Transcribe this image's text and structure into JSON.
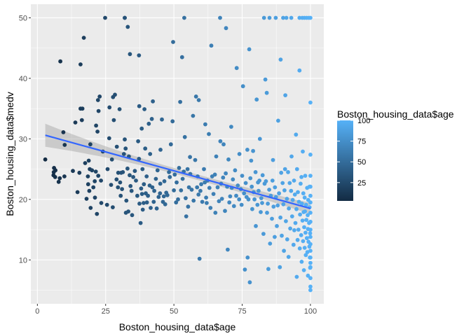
{
  "chart_data": {
    "type": "scatter",
    "title": "",
    "xlabel": "Boston_housing_data$age",
    "ylabel": "Boston_housing_data$medv",
    "xlim": [
      -2.4,
      104.9
    ],
    "ylim": [
      2.75,
      52.25
    ],
    "x_ticks": [
      0,
      25,
      50,
      75,
      100
    ],
    "x_tick_labels": [
      "0",
      "25",
      "50",
      "75",
      "100"
    ],
    "y_ticks": [
      10,
      20,
      30,
      40,
      50
    ],
    "y_tick_labels": [
      "10",
      "20",
      "30",
      "40",
      "50"
    ],
    "grid": true,
    "legend": {
      "title": "Boston_housing_data$age",
      "placement": "right",
      "ticks": [
        25,
        50,
        75,
        100
      ],
      "tick_labels": [
        "25",
        "50",
        "75",
        "100"
      ],
      "range": [
        2.9,
        100
      ],
      "low_color": "#132B43",
      "high_color": "#56B1F7"
    },
    "colors": {
      "panel": "#EBEBEB",
      "grid": "#FFFFFF",
      "line": "#3366FF",
      "band": "#999999"
    },
    "fit_line": {
      "x": [
        2.9,
        100
      ],
      "y": [
        30.6,
        18.5
      ],
      "band_half_width_ends": [
        1.9,
        0.9
      ],
      "band_half_width_mid": 0.45
    },
    "points": [
      [
        2.9,
        26.6
      ],
      [
        5.9,
        24.0
      ],
      [
        6.0,
        24.5
      ],
      [
        6.1,
        25.2
      ],
      [
        6.5,
        23.7
      ],
      [
        6.6,
        24.8
      ],
      [
        7.8,
        22.9
      ],
      [
        8.2,
        23.5
      ],
      [
        8.4,
        42.8
      ],
      [
        9.5,
        31.1
      ],
      [
        9.9,
        23.8
      ],
      [
        10.0,
        29.0
      ],
      [
        13.0,
        24.7
      ],
      [
        13.9,
        32.7
      ],
      [
        14.7,
        21.2
      ],
      [
        15.4,
        24.4
      ],
      [
        15.8,
        35.0
      ],
      [
        15.8,
        42.3
      ],
      [
        16.3,
        33.1
      ],
      [
        16.5,
        35.0
      ],
      [
        17.0,
        46.7
      ],
      [
        17.5,
        26.0
      ],
      [
        18.0,
        20.1
      ],
      [
        18.5,
        23.8
      ],
      [
        18.6,
        22.5
      ],
      [
        18.8,
        26.4
      ],
      [
        19.0,
        21.4
      ],
      [
        19.2,
        25.0
      ],
      [
        19.4,
        29.1
      ],
      [
        19.5,
        18.6
      ],
      [
        20.0,
        24.8
      ],
      [
        20.5,
        22.0
      ],
      [
        21.0,
        23.0
      ],
      [
        21.1,
        20.3
      ],
      [
        21.4,
        24.6
      ],
      [
        21.5,
        32.2
      ],
      [
        21.8,
        17.6
      ],
      [
        22.0,
        31.2
      ],
      [
        22.2,
        36.4
      ],
      [
        22.3,
        23.9
      ],
      [
        22.4,
        34.6
      ],
      [
        22.8,
        37.0
      ],
      [
        23.3,
        23.1
      ],
      [
        23.4,
        19.4
      ],
      [
        24.0,
        27.9
      ],
      [
        24.8,
        50.0
      ],
      [
        25.5,
        19.1
      ],
      [
        25.7,
        25.0
      ],
      [
        26.3,
        30.1
      ],
      [
        26.4,
        35.2
      ],
      [
        27.0,
        22.4
      ],
      [
        27.3,
        26.6
      ],
      [
        27.6,
        18.7
      ],
      [
        27.7,
        36.9
      ],
      [
        28.0,
        33.1
      ],
      [
        28.4,
        37.3
      ],
      [
        29.0,
        23.3
      ],
      [
        29.1,
        28.7
      ],
      [
        29.5,
        22.0
      ],
      [
        29.6,
        24.4
      ],
      [
        30.1,
        34.9
      ],
      [
        30.3,
        22.8
      ],
      [
        30.5,
        20.6
      ],
      [
        30.7,
        24.4
      ],
      [
        31.0,
        21.7
      ],
      [
        31.3,
        24.5
      ],
      [
        31.7,
        27.5
      ],
      [
        32.0,
        50.0
      ],
      [
        32.0,
        50.0
      ],
      [
        32.0,
        29.9
      ],
      [
        32.3,
        28.4
      ],
      [
        32.4,
        17.8
      ],
      [
        32.6,
        19.8
      ],
      [
        33.0,
        25.1
      ],
      [
        33.1,
        48.5
      ],
      [
        33.3,
        18.0
      ],
      [
        33.5,
        27.1
      ],
      [
        33.8,
        24.0
      ],
      [
        33.9,
        44.0
      ],
      [
        34.1,
        22.2
      ],
      [
        34.5,
        21.4
      ],
      [
        34.7,
        17.4
      ],
      [
        35.1,
        23.7
      ],
      [
        35.7,
        24.7
      ],
      [
        36.1,
        23.1
      ],
      [
        36.6,
        20.6
      ],
      [
        36.9,
        29.6
      ],
      [
        37.2,
        26.7
      ],
      [
        37.2,
        43.8
      ],
      [
        37.3,
        35.4
      ],
      [
        37.4,
        19.3
      ],
      [
        37.8,
        16.1
      ],
      [
        38.0,
        21.8
      ],
      [
        38.2,
        31.7
      ],
      [
        38.3,
        20.9
      ],
      [
        38.5,
        25.0
      ],
      [
        38.6,
        18.3
      ],
      [
        38.9,
        19.4
      ],
      [
        39.0,
        22.5
      ],
      [
        39.2,
        34.9
      ],
      [
        39.5,
        28.4
      ],
      [
        39.7,
        21.0
      ],
      [
        40.0,
        23.8
      ],
      [
        40.1,
        19.5
      ],
      [
        40.5,
        20.6
      ],
      [
        40.8,
        32.5
      ],
      [
        41.1,
        22.3
      ],
      [
        41.3,
        27.5
      ],
      [
        41.5,
        18.6
      ],
      [
        41.9,
        33.3
      ],
      [
        42.1,
        22.0
      ],
      [
        42.3,
        36.2
      ],
      [
        42.6,
        19.6
      ],
      [
        42.8,
        21.4
      ],
      [
        43.4,
        23.4
      ],
      [
        43.7,
        18.5
      ],
      [
        44.0,
        24.8
      ],
      [
        44.4,
        20.4
      ],
      [
        44.9,
        21.0
      ],
      [
        45.0,
        22.6
      ],
      [
        45.1,
        28.2
      ],
      [
        45.6,
        33.2
      ],
      [
        46.0,
        19.6
      ],
      [
        46.3,
        20.5
      ],
      [
        46.5,
        23.0
      ],
      [
        46.8,
        19.2
      ],
      [
        47.2,
        21.1
      ],
      [
        47.6,
        20.7
      ],
      [
        48.2,
        24.5
      ],
      [
        48.5,
        23.7
      ],
      [
        48.9,
        29.1
      ],
      [
        49.5,
        32.9
      ],
      [
        49.7,
        46.0
      ],
      [
        50.0,
        21.5
      ],
      [
        50.3,
        24.1
      ],
      [
        50.8,
        19.5
      ],
      [
        51.0,
        22.8
      ],
      [
        51.5,
        20.0
      ],
      [
        51.9,
        25.2
      ],
      [
        52.3,
        36.1
      ],
      [
        52.6,
        21.5
      ],
      [
        53.0,
        43.5
      ],
      [
        53.2,
        23.4
      ],
      [
        53.6,
        24.6
      ],
      [
        53.8,
        50.0
      ],
      [
        54.0,
        30.3
      ],
      [
        54.3,
        20.2
      ],
      [
        54.5,
        17.2
      ],
      [
        55.0,
        25.0
      ],
      [
        55.2,
        18.8
      ],
      [
        55.5,
        22.0
      ],
      [
        55.9,
        27.0
      ],
      [
        56.0,
        24.2
      ],
      [
        56.5,
        21.6
      ],
      [
        57.0,
        33.8
      ],
      [
        57.2,
        19.8
      ],
      [
        57.8,
        26.5
      ],
      [
        58.1,
        37.0
      ],
      [
        58.5,
        22.0
      ],
      [
        58.7,
        23.8
      ],
      [
        59.0,
        20.8
      ],
      [
        59.1,
        36.4
      ],
      [
        59.4,
        10.2
      ],
      [
        59.7,
        21.4
      ],
      [
        60.0,
        22.5
      ],
      [
        60.4,
        19.6
      ],
      [
        61.0,
        25.0
      ],
      [
        61.3,
        22.8
      ],
      [
        61.5,
        32.4
      ],
      [
        61.8,
        20.3
      ],
      [
        62.0,
        19.4
      ],
      [
        62.3,
        23.1
      ],
      [
        62.8,
        30.8
      ],
      [
        63.0,
        21.9
      ],
      [
        63.4,
        18.6
      ],
      [
        63.7,
        45.4
      ],
      [
        64.0,
        23.8
      ],
      [
        64.5,
        20.9
      ],
      [
        65.0,
        24.1
      ],
      [
        65.2,
        17.8
      ],
      [
        65.5,
        27.1
      ],
      [
        66.0,
        22.0
      ],
      [
        66.5,
        19.7
      ],
      [
        66.9,
        50.0
      ],
      [
        67.0,
        29.6
      ],
      [
        67.3,
        22.6
      ],
      [
        67.6,
        20.1
      ],
      [
        68.0,
        23.6
      ],
      [
        68.2,
        29.1
      ],
      [
        68.7,
        18.1
      ],
      [
        69.0,
        24.3
      ],
      [
        69.1,
        48.3
      ],
      [
        69.5,
        22.1
      ],
      [
        69.7,
        11.7
      ],
      [
        70.0,
        26.6
      ],
      [
        70.3,
        19.5
      ],
      [
        70.6,
        20.5
      ],
      [
        71.0,
        32.0
      ],
      [
        71.2,
        21.9
      ],
      [
        71.6,
        23.3
      ],
      [
        72.0,
        18.9
      ],
      [
        72.4,
        24.8
      ],
      [
        72.8,
        20.6
      ],
      [
        73.0,
        41.7
      ],
      [
        73.4,
        22.3
      ],
      [
        73.9,
        20.0
      ],
      [
        74.0,
        27.5
      ],
      [
        74.5,
        21.7
      ],
      [
        74.8,
        19.1
      ],
      [
        75.0,
        23.9
      ],
      [
        75.3,
        38.7
      ],
      [
        75.7,
        21.0
      ],
      [
        76.0,
        8.4
      ],
      [
        76.3,
        22.7
      ],
      [
        76.6,
        20.4
      ],
      [
        76.9,
        28.2
      ],
      [
        77.0,
        10.4
      ],
      [
        77.3,
        20.0
      ],
      [
        77.6,
        44.8
      ],
      [
        77.8,
        6.3
      ],
      [
        78.0,
        23.5
      ],
      [
        78.3,
        26.4
      ],
      [
        78.5,
        22.1
      ],
      [
        78.7,
        18.4
      ],
      [
        79.0,
        28.0
      ],
      [
        79.2,
        21.2
      ],
      [
        79.5,
        20.0
      ],
      [
        79.9,
        24.5
      ],
      [
        80.0,
        15.6
      ],
      [
        80.3,
        36.5
      ],
      [
        80.6,
        19.1
      ],
      [
        80.8,
        22.8
      ],
      [
        81.0,
        21.4
      ],
      [
        81.3,
        23.1
      ],
      [
        81.5,
        30.0
      ],
      [
        81.8,
        17.9
      ],
      [
        82.0,
        20.2
      ],
      [
        82.3,
        19.4
      ],
      [
        82.5,
        24.0
      ],
      [
        82.8,
        14.3
      ],
      [
        83.0,
        50.0
      ],
      [
        83.2,
        22.6
      ],
      [
        83.5,
        39.8
      ],
      [
        83.7,
        23.0
      ],
      [
        84.0,
        37.6
      ],
      [
        84.1,
        17.8
      ],
      [
        84.4,
        19.3
      ],
      [
        84.6,
        8.5
      ],
      [
        84.9,
        21.6
      ],
      [
        85.0,
        50.0
      ],
      [
        85.2,
        12.7
      ],
      [
        85.5,
        20.6
      ],
      [
        85.9,
        16.8
      ],
      [
        86.1,
        23.1
      ],
      [
        86.3,
        26.5
      ],
      [
        86.5,
        18.8
      ],
      [
        86.9,
        13.8
      ],
      [
        87.0,
        22.0
      ],
      [
        87.3,
        50.0
      ],
      [
        87.4,
        20.4
      ],
      [
        87.7,
        15.6
      ],
      [
        88.0,
        19.0
      ],
      [
        88.2,
        33.0
      ],
      [
        88.5,
        21.0
      ],
      [
        88.8,
        8.8
      ],
      [
        89.0,
        17.0
      ],
      [
        89.1,
        43.1
      ],
      [
        89.3,
        24.4
      ],
      [
        89.5,
        14.0
      ],
      [
        89.8,
        22.7
      ],
      [
        90.0,
        50.0
      ],
      [
        90.1,
        19.2
      ],
      [
        90.3,
        11.5
      ],
      [
        90.5,
        21.5
      ],
      [
        90.7,
        25.0
      ],
      [
        90.8,
        37.2
      ],
      [
        91.0,
        16.4
      ],
      [
        91.2,
        50.0
      ],
      [
        91.4,
        20.1
      ],
      [
        91.5,
        13.4
      ],
      [
        91.8,
        24.5
      ],
      [
        92.0,
        10.5
      ],
      [
        92.1,
        18.5
      ],
      [
        92.4,
        22.7
      ],
      [
        92.6,
        15.2
      ],
      [
        92.9,
        21.4
      ],
      [
        93.0,
        50.0
      ],
      [
        93.1,
        27.1
      ],
      [
        93.3,
        17.2
      ],
      [
        93.5,
        19.9
      ],
      [
        93.8,
        12.5
      ],
      [
        94.0,
        23.1
      ],
      [
        94.1,
        14.9
      ],
      [
        94.3,
        20.8
      ],
      [
        94.5,
        16.1
      ],
      [
        94.7,
        30.7
      ],
      [
        94.9,
        18.4
      ],
      [
        95.0,
        7.2
      ],
      [
        95.1,
        25.0
      ],
      [
        95.3,
        13.3
      ],
      [
        95.4,
        21.2
      ],
      [
        95.6,
        15.0
      ],
      [
        95.8,
        19.6
      ],
      [
        96.0,
        50.0
      ],
      [
        96.0,
        41.3
      ],
      [
        96.1,
        11.9
      ],
      [
        96.2,
        17.5
      ],
      [
        96.4,
        22.6
      ],
      [
        96.6,
        14.1
      ],
      [
        96.7,
        23.7
      ],
      [
        96.8,
        9.7
      ],
      [
        96.9,
        19.3
      ],
      [
        97.0,
        50.0
      ],
      [
        97.1,
        16.5
      ],
      [
        97.2,
        27.9
      ],
      [
        97.3,
        13.1
      ],
      [
        97.4,
        21.0
      ],
      [
        97.5,
        17.9
      ],
      [
        97.6,
        8.3
      ],
      [
        97.7,
        15.4
      ],
      [
        97.8,
        50.0
      ],
      [
        97.9,
        20.3
      ],
      [
        97.9,
        12.0
      ],
      [
        98.0,
        18.0
      ],
      [
        98.1,
        23.9
      ],
      [
        98.2,
        14.5
      ],
      [
        98.3,
        10.8
      ],
      [
        98.4,
        19.1
      ],
      [
        98.5,
        16.6
      ],
      [
        98.6,
        50.0
      ],
      [
        98.7,
        13.6
      ],
      [
        98.8,
        21.9
      ],
      [
        98.9,
        11.3
      ],
      [
        99.0,
        17.4
      ],
      [
        99.1,
        15.1
      ],
      [
        99.1,
        7.4
      ],
      [
        99.2,
        19.9
      ],
      [
        99.3,
        13.0
      ],
      [
        99.4,
        50.0
      ],
      [
        99.5,
        16.1
      ],
      [
        99.6,
        12.2
      ],
      [
        99.7,
        22.1
      ],
      [
        99.7,
        18.7
      ],
      [
        99.8,
        10.4
      ],
      [
        99.9,
        14.4
      ],
      [
        99.9,
        8.7
      ],
      [
        100.0,
        50.0
      ],
      [
        100.0,
        36.0
      ],
      [
        100.0,
        27.4
      ],
      [
        100.0,
        23.9
      ],
      [
        100.0,
        22.1
      ],
      [
        100.0,
        20.6
      ],
      [
        100.0,
        19.5
      ],
      [
        100.0,
        17.8
      ],
      [
        100.0,
        16.3
      ],
      [
        100.0,
        15.0
      ],
      [
        100.0,
        13.8
      ],
      [
        100.0,
        12.6
      ],
      [
        100.0,
        11.5
      ],
      [
        100.0,
        10.4
      ],
      [
        100.0,
        9.5
      ],
      [
        100.0,
        8.8
      ],
      [
        100.0,
        7.0
      ],
      [
        100.0,
        5.6
      ],
      [
        100.0,
        5.0
      ]
    ]
  }
}
